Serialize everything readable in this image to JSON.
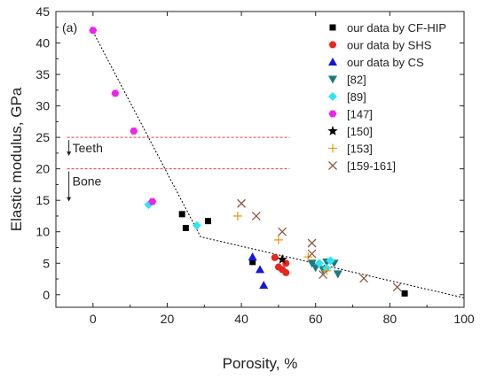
{
  "chart_data": {
    "type": "scatter",
    "panel_label": "(a)",
    "xlabel": "Porosity, %",
    "ylabel": "Elastic modulus, GPa",
    "xlim": [
      -10,
      100
    ],
    "ylim": [
      -2,
      45
    ],
    "xticks": [
      0,
      20,
      40,
      60,
      80,
      100
    ],
    "yticks": [
      0,
      5,
      10,
      15,
      20,
      25,
      30,
      35,
      40,
      45
    ],
    "grid": false,
    "legend_position": "top-right",
    "series": [
      {
        "name": "our data by CF-HIP",
        "marker": "square",
        "color": "#000000",
        "points": [
          [
            24,
            12.8
          ],
          [
            25,
            10.6
          ],
          [
            31,
            11.7
          ],
          [
            43,
            5.2
          ],
          [
            84,
            0.2
          ]
        ]
      },
      {
        "name": "our data by SHS",
        "marker": "circle",
        "color": "#e8261c",
        "points": [
          [
            49,
            5.9
          ],
          [
            50,
            4.4
          ],
          [
            51,
            4.0
          ],
          [
            52,
            3.5
          ],
          [
            52,
            5.0
          ]
        ]
      },
      {
        "name": "our data by CS",
        "marker": "triangle-up",
        "color": "#1515e0",
        "points": [
          [
            43,
            6.0
          ],
          [
            45,
            4.0
          ],
          [
            46,
            1.5
          ]
        ]
      },
      {
        "name": "[82]",
        "marker": "triangle-down",
        "color": "#1e7b7b",
        "points": [
          [
            59,
            5.0
          ],
          [
            60,
            4.3
          ],
          [
            62,
            4.0
          ],
          [
            63,
            5.2
          ],
          [
            65,
            5.0
          ],
          [
            66,
            3.3
          ]
        ]
      },
      {
        "name": "[89]",
        "marker": "diamond",
        "color": "#2ee6f2",
        "points": [
          [
            15,
            14.3
          ],
          [
            28,
            11.0
          ],
          [
            61,
            5.0
          ],
          [
            63,
            4.2
          ],
          [
            64,
            5.4
          ]
        ]
      },
      {
        "name": "[147]",
        "marker": "hexagon",
        "color": "#ee22ee",
        "points": [
          [
            0,
            42
          ],
          [
            6,
            32
          ],
          [
            11,
            26
          ],
          [
            16,
            14.8
          ]
        ]
      },
      {
        "name": "[150]",
        "marker": "star",
        "color": "#000000",
        "points": [
          [
            51,
            5.6
          ]
        ]
      },
      {
        "name": "[153]",
        "marker": "plus",
        "color": "#e8a020",
        "points": [
          [
            39,
            12.5
          ],
          [
            50,
            8.7
          ],
          [
            58,
            6.0
          ],
          [
            63,
            3.8
          ]
        ]
      },
      {
        "name": "[159-161]",
        "marker": "cross",
        "color": "#8b5a4a",
        "points": [
          [
            40,
            14.5
          ],
          [
            44,
            12.5
          ],
          [
            51,
            10.0
          ],
          [
            59,
            8.2
          ],
          [
            59,
            6.5
          ],
          [
            62,
            3.2
          ],
          [
            73,
            2.6
          ],
          [
            82,
            1.2
          ]
        ]
      }
    ],
    "trend_line": {
      "style": "dotted",
      "color": "#000000",
      "points": [
        [
          0,
          41.8
        ],
        [
          29,
          9.2
        ],
        [
          100,
          -0.5
        ]
      ]
    },
    "reference_lines": [
      {
        "y": 25,
        "label": "Teeth",
        "color": "#e04040",
        "style": "dashed"
      },
      {
        "y": 20,
        "label": "Bone",
        "color": "#e04040",
        "style": "dashed"
      }
    ]
  }
}
